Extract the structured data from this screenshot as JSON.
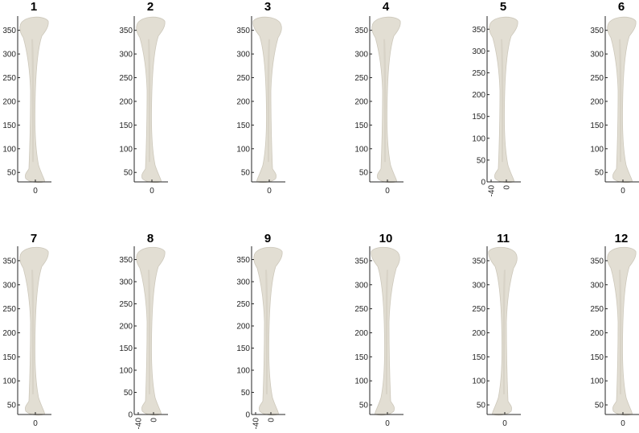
{
  "figure": {
    "panels": [
      {
        "title": "1",
        "yticks": [
          "50",
          "100",
          "150",
          "200",
          "250",
          "300",
          "350"
        ],
        "xticks": [
          "0"
        ],
        "x_rotated": false
      },
      {
        "title": "2",
        "yticks": [
          "50",
          "100",
          "150",
          "200",
          "250",
          "300",
          "350"
        ],
        "xticks": [
          "0"
        ],
        "x_rotated": false
      },
      {
        "title": "3",
        "yticks": [
          "50",
          "100",
          "150",
          "200",
          "250",
          "300",
          "350"
        ],
        "xticks": [
          "0"
        ],
        "x_rotated": false
      },
      {
        "title": "4",
        "yticks": [
          "50",
          "100",
          "150",
          "200",
          "250",
          "300",
          "350"
        ],
        "xticks": [
          "0"
        ],
        "x_rotated": false
      },
      {
        "title": "5",
        "yticks": [
          "0",
          "50",
          "100",
          "150",
          "200",
          "250",
          "300",
          "350"
        ],
        "xticks": [
          "-40",
          "0"
        ],
        "x_rotated": true
      },
      {
        "title": "6",
        "yticks": [
          "50",
          "100",
          "150",
          "200",
          "250",
          "300",
          "350"
        ],
        "xticks": [
          "0"
        ],
        "x_rotated": false
      },
      {
        "title": "7",
        "yticks": [
          "50",
          "100",
          "150",
          "200",
          "250",
          "300",
          "350"
        ],
        "xticks": [
          "0"
        ],
        "x_rotated": false
      },
      {
        "title": "8",
        "yticks": [
          "0",
          "50",
          "100",
          "150",
          "200",
          "250",
          "300",
          "350"
        ],
        "xticks": [
          "-40",
          "0"
        ],
        "x_rotated": true
      },
      {
        "title": "9",
        "yticks": [
          "0",
          "50",
          "100",
          "150",
          "200",
          "250",
          "300",
          "350"
        ],
        "xticks": [
          "-40",
          "0"
        ],
        "x_rotated": true
      },
      {
        "title": "10",
        "yticks": [
          "50",
          "100",
          "150",
          "200",
          "250",
          "300",
          "350"
        ],
        "xticks": [
          "0"
        ],
        "x_rotated": false
      },
      {
        "title": "11",
        "yticks": [
          "50",
          "100",
          "150",
          "200",
          "250",
          "300",
          "350"
        ],
        "xticks": [
          "0"
        ],
        "x_rotated": false
      },
      {
        "title": "12",
        "yticks": [
          "50",
          "100",
          "150",
          "200",
          "250",
          "300",
          "350"
        ],
        "xticks": [
          "0"
        ],
        "x_rotated": false
      }
    ]
  }
}
